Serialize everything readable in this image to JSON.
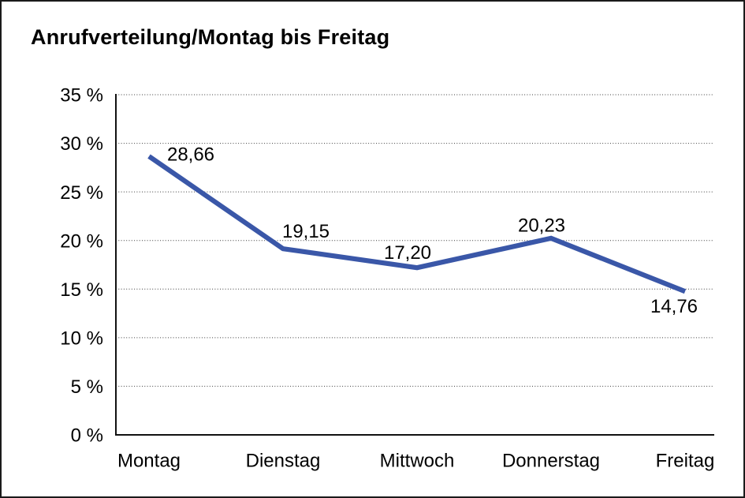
{
  "chart_data": {
    "type": "line",
    "title": "Anrufverteilung/Montag bis Freitag",
    "categories": [
      "Montag",
      "Dienstag",
      "Mittwoch",
      "Donnerstag",
      "Freitag"
    ],
    "series": [
      {
        "name": "Anrufverteilung",
        "values": [
          28.66,
          19.15,
          17.2,
          20.23,
          14.76
        ]
      }
    ],
    "data_labels": [
      "28,66",
      "19,15",
      "17,20",
      "20,23",
      "14,76"
    ],
    "xlabel": "",
    "ylabel": "",
    "ylim": [
      0,
      35
    ],
    "y_tick_step": 5,
    "y_tick_labels": [
      "0 %",
      "5 %",
      "10 %",
      "15 %",
      "20 %",
      "25 %",
      "30 %",
      "35 %"
    ],
    "grid": "horizontal-dotted",
    "legend": "none",
    "colors": {
      "line": "#3a57a8",
      "text": "#000000",
      "grid": "#3c3c3c",
      "axis": "#111111",
      "background": "#ffffff",
      "frame_border": "#1a1a1a"
    }
  }
}
